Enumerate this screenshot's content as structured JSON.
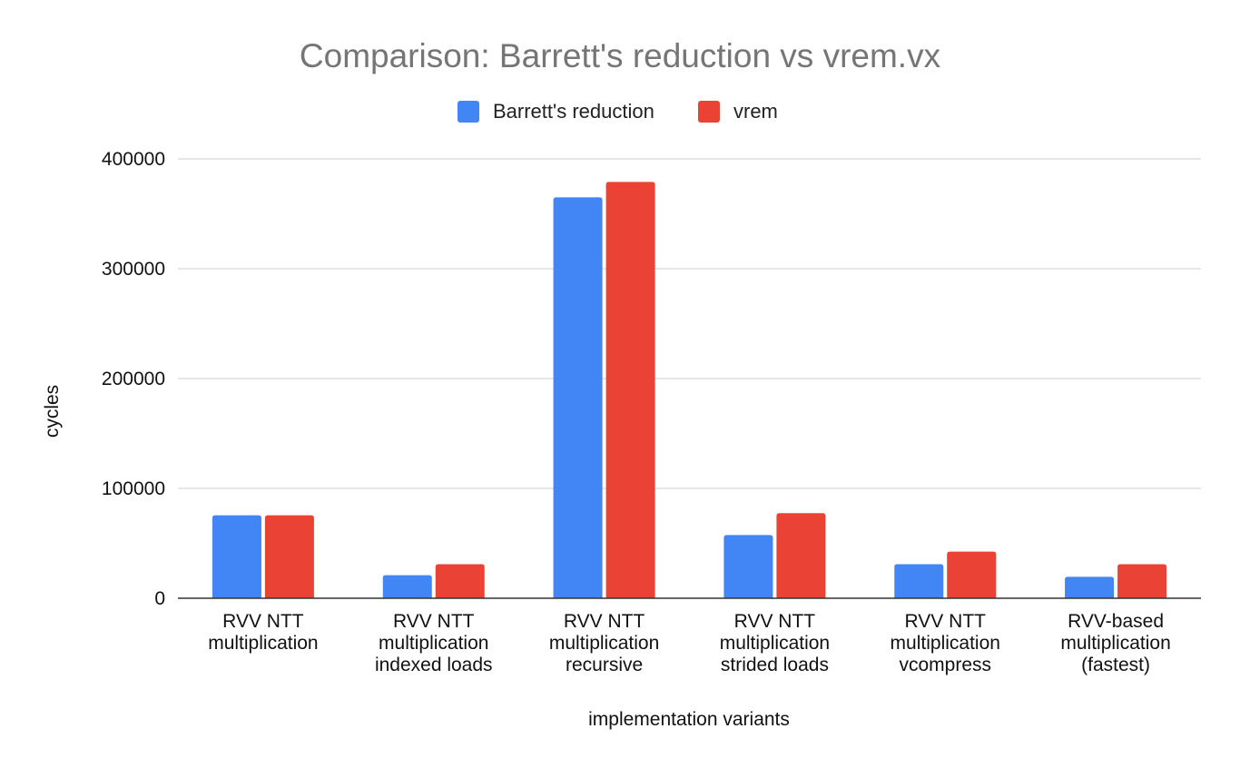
{
  "chart_data": {
    "type": "bar",
    "title": "Comparison: Barrett's reduction vs vrem.vx",
    "xlabel": "implementation variants",
    "ylabel": "cycles",
    "ylim": [
      0,
      400000
    ],
    "yticks": [
      "0",
      "100000",
      "200000",
      "300000",
      "400000"
    ],
    "grid": true,
    "legend_position": "top",
    "categories": [
      [
        "RVV NTT",
        "multiplication"
      ],
      [
        "RVV NTT",
        "multiplication",
        "indexed loads"
      ],
      [
        "RVV NTT",
        "multiplication",
        "recursive"
      ],
      [
        "RVV NTT",
        "multiplication",
        "strided loads"
      ],
      [
        "RVV NTT",
        "multiplication",
        "vcompress"
      ],
      [
        "RVV-based",
        "multiplication",
        "(fastest)"
      ]
    ],
    "series": [
      {
        "name": "Barrett's reduction",
        "color": "#4285f4",
        "values": [
          75500,
          21000,
          365000,
          57500,
          31000,
          19500
        ]
      },
      {
        "name": "vrem",
        "color": "#ea4335",
        "values": [
          75500,
          31000,
          379000,
          77500,
          42500,
          31000
        ]
      }
    ]
  }
}
